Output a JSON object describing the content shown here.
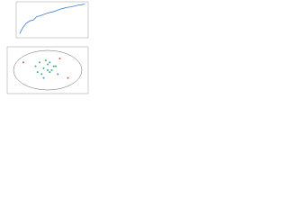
{
  "chart_data": [
    {
      "type": "line",
      "color": "#3a7bd5",
      "x": [
        1,
        2,
        3,
        4,
        5,
        6,
        7,
        8,
        9,
        10,
        11,
        12,
        13,
        14,
        15,
        16,
        17,
        18,
        19,
        20
      ],
      "values": [
        0.3,
        0.45,
        0.55,
        0.6,
        0.62,
        0.7,
        0.72,
        0.75,
        0.78,
        0.8,
        0.82,
        0.85,
        0.88,
        0.9,
        0.92,
        0.93,
        0.95,
        0.97,
        0.98,
        1.0
      ],
      "xlim": [
        0,
        21
      ],
      "ylim": [
        0.2,
        1.05
      ]
    },
    {
      "type": "scatter",
      "xlim": [
        -10,
        10
      ],
      "ylim": [
        -6,
        6
      ],
      "series": [
        {
          "color": "#3cb371",
          "x": [
            -3,
            -2,
            -1,
            -2.5,
            0,
            1,
            -1.5,
            2,
            -0.5,
            0.5
          ],
          "y": [
            1,
            2,
            0.5,
            -0.5,
            1.5,
            0,
            -1,
            1,
            2.5,
            -0.5
          ]
        },
        {
          "color": "#4a90d9",
          "x": [
            0,
            1.5,
            -1,
            2.5,
            0.5
          ],
          "y": [
            0,
            1,
            -2,
            -1,
            2
          ]
        },
        {
          "color": "#d9534f",
          "x": [
            -6,
            5,
            3
          ],
          "y": [
            2,
            -2,
            3
          ]
        }
      ]
    }
  ]
}
